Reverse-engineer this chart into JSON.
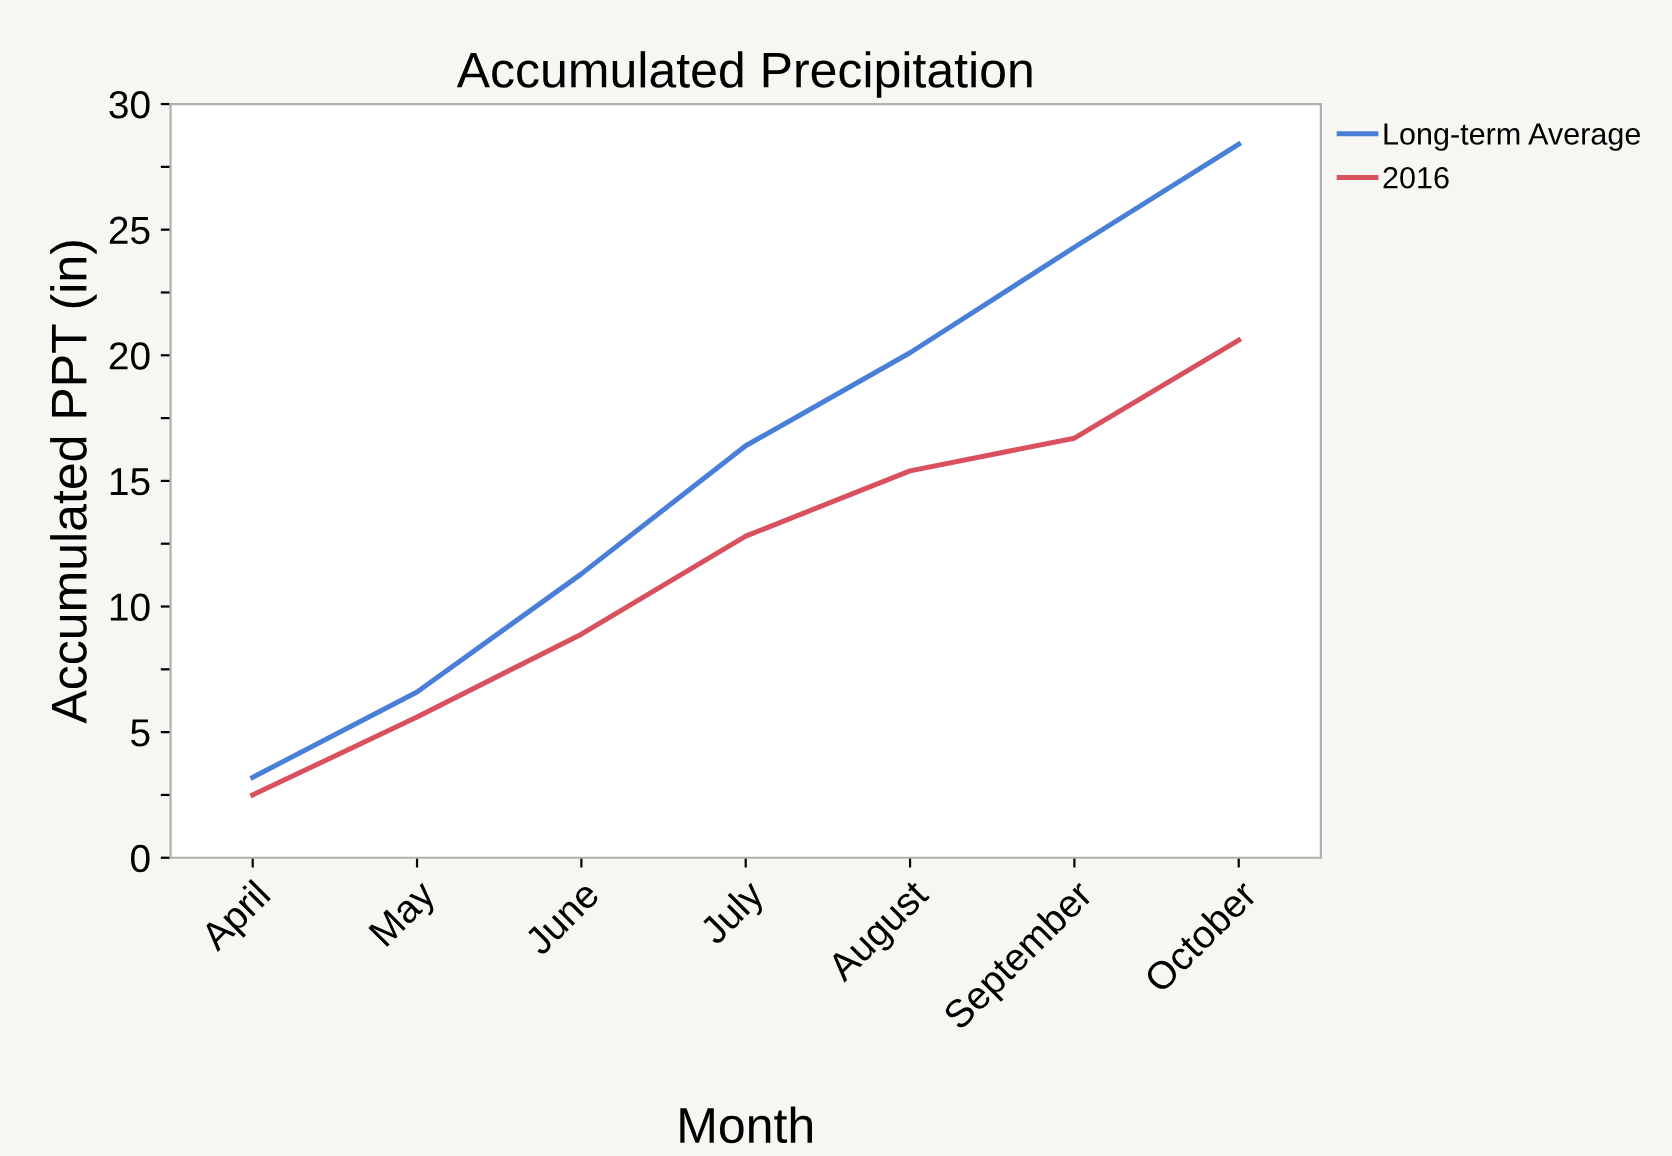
{
  "chart_data": {
    "type": "line",
    "title": "Accumulated Precipitation",
    "xlabel": "Month",
    "ylabel": "Accumulated PPT (in)",
    "categories": [
      "April",
      "May",
      "June",
      "July",
      "August",
      "September",
      "October"
    ],
    "series": [
      {
        "name": "Long-term Average",
        "color": "#4a7fd8",
        "values": [
          3.2,
          6.6,
          11.3,
          16.4,
          20.1,
          24.3,
          28.4
        ]
      },
      {
        "name": "2016",
        "color": "#d9505e",
        "values": [
          2.5,
          5.6,
          8.9,
          12.8,
          15.4,
          16.7,
          20.6
        ]
      }
    ],
    "ylim": [
      0,
      30
    ],
    "yticks": [
      0,
      {
        "value": 2.5,
        "label": null
      },
      5,
      {
        "value": 7.5,
        "label": null
      },
      10,
      {
        "value": 12.5,
        "label": null
      },
      15,
      {
        "value": 17.5,
        "label": null
      },
      20,
      {
        "value": 22.5,
        "label": null
      },
      25,
      {
        "value": 27.5,
        "label": null
      },
      30
    ],
    "grid": false,
    "legend": "top right",
    "marker": "none",
    "line_style": "solid"
  }
}
